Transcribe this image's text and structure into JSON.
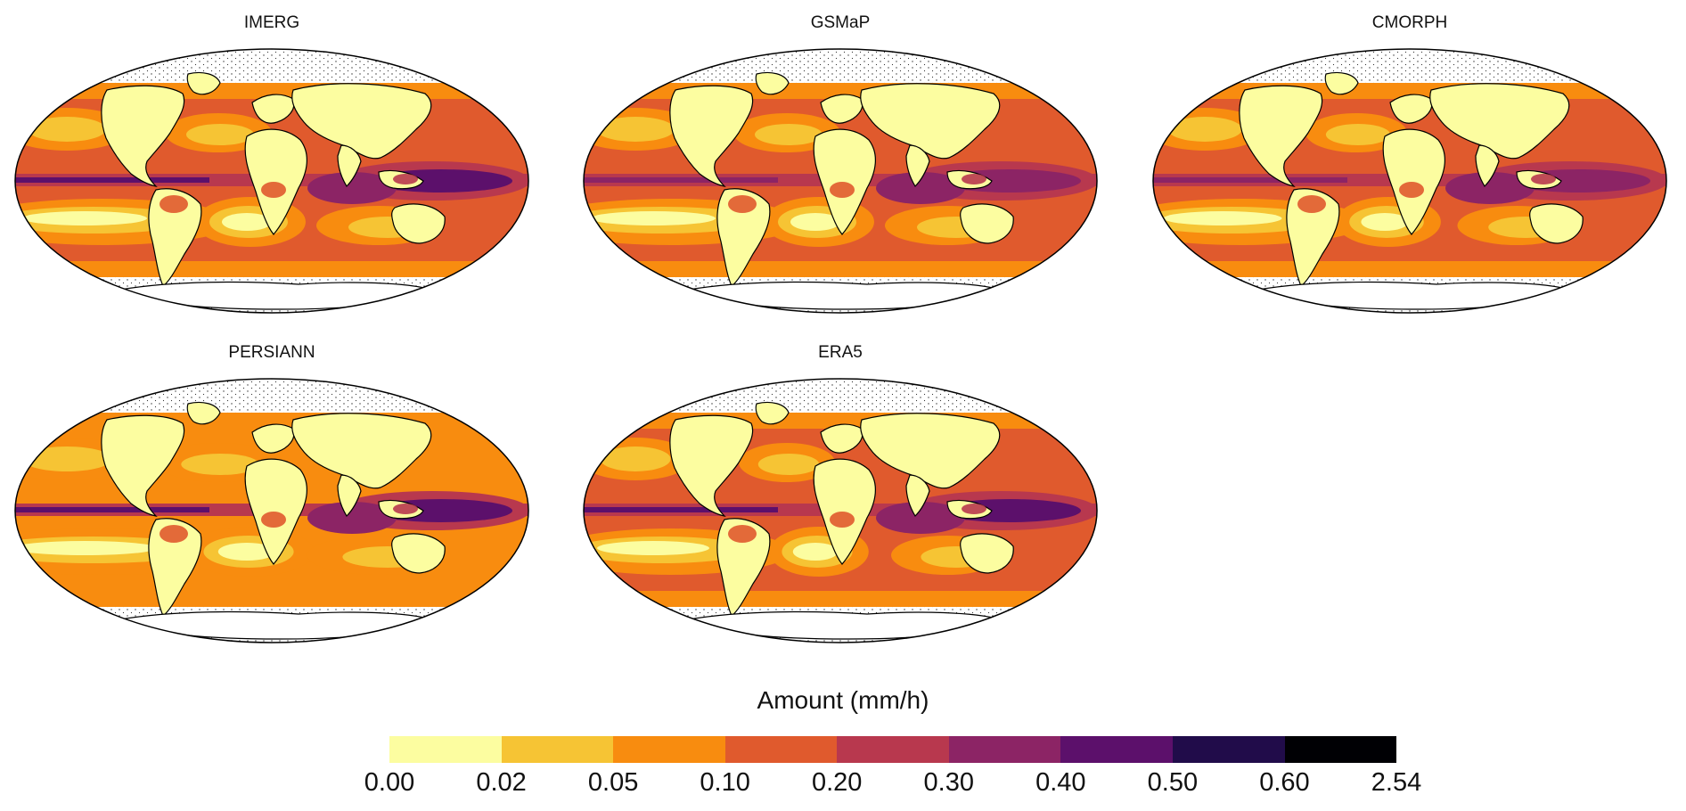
{
  "panels": [
    {
      "title": "IMERG"
    },
    {
      "title": "GSMaP"
    },
    {
      "title": "CMORPH"
    },
    {
      "title": "PERSIANN"
    },
    {
      "title": "ERA5"
    }
  ],
  "legend": {
    "title": "Amount (mm/h)",
    "ticks": [
      "0.00",
      "0.02",
      "0.05",
      "0.10",
      "0.20",
      "0.30",
      "0.40",
      "0.50",
      "0.60",
      "2.54"
    ],
    "colors": [
      "#fcfda0",
      "#f6c434",
      "#f88c0f",
      "#e05a2d",
      "#b8384e",
      "#8c2465",
      "#5c106b",
      "#210c4a",
      "#000004"
    ]
  },
  "map": {
    "projection": "robinson-like",
    "ocean_base_color": "#e05a2d",
    "polar_mask_color": "#ffffff",
    "coastline_color": "#000000"
  }
}
